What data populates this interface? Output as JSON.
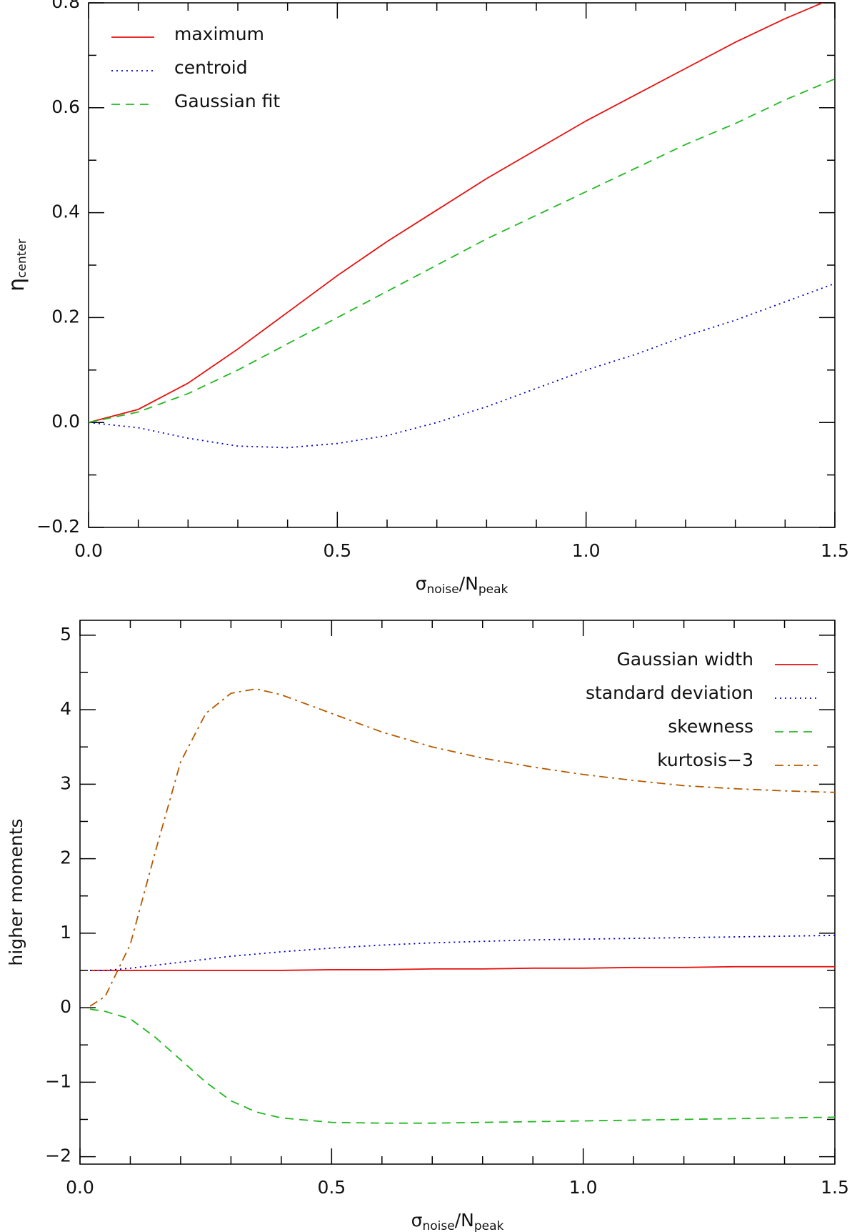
{
  "chart_data": [
    {
      "type": "line",
      "xlabel": [
        "σ",
        "noise",
        "/N",
        "peak"
      ],
      "ylabel": [
        "η",
        "center"
      ],
      "xlim": [
        0,
        1.5
      ],
      "ylim": [
        -0.2,
        0.8
      ],
      "xticks": [
        {
          "value": 0,
          "label": "0.0"
        },
        {
          "value": 0.5,
          "label": "0.5"
        },
        {
          "value": 1,
          "label": "1.0"
        },
        {
          "value": 1.5,
          "label": "1.5"
        }
      ],
      "yticks": [
        {
          "value": -0.2,
          "label": "−0.2"
        },
        {
          "value": 0,
          "label": "0.0"
        },
        {
          "value": 0.2,
          "label": "0.2"
        },
        {
          "value": 0.4,
          "label": "0.4"
        },
        {
          "value": 0.6,
          "label": "0.6"
        },
        {
          "value": 0.8,
          "label": "0.8"
        }
      ],
      "xminorticks": [
        0.1,
        0.2,
        0.3,
        0.4,
        0.6,
        0.7,
        0.8,
        0.9,
        1.1,
        1.2,
        1.3,
        1.4
      ],
      "yminorticks": [
        -0.1,
        0.1,
        0.3,
        0.5,
        0.7
      ],
      "legend": "upper left",
      "x": [
        0,
        0.1,
        0.2,
        0.3,
        0.4,
        0.5,
        0.6,
        0.7,
        0.8,
        0.9,
        1.0,
        1.1,
        1.2,
        1.3,
        1.4,
        1.5
      ],
      "series": [
        {
          "name": "maximum",
          "color": "#e8100e",
          "style": "solid",
          "values": [
            0,
            0.025,
            0.075,
            0.14,
            0.21,
            0.28,
            0.345,
            0.405,
            0.465,
            0.52,
            0.575,
            0.625,
            0.675,
            0.725,
            0.77,
            0.81
          ]
        },
        {
          "name": "centroid",
          "color": "#0000c0",
          "style": "dotted",
          "values": [
            0,
            -0.01,
            -0.03,
            -0.045,
            -0.048,
            -0.04,
            -0.025,
            0,
            0.03,
            0.065,
            0.1,
            0.13,
            0.165,
            0.195,
            0.23,
            0.265
          ]
        },
        {
          "name": "Gaussian fit",
          "color": "#22b822",
          "style": "dashed",
          "values": [
            0,
            0.02,
            0.055,
            0.1,
            0.15,
            0.2,
            0.25,
            0.3,
            0.35,
            0.395,
            0.44,
            0.485,
            0.53,
            0.57,
            0.615,
            0.655
          ]
        }
      ]
    },
    {
      "type": "line",
      "xlabel": [
        "σ",
        "noise",
        "/N",
        "peak"
      ],
      "ylabel": [
        "higher moments"
      ],
      "xlim": [
        0,
        1.5
      ],
      "ylim": [
        -2.1,
        5.2
      ],
      "xticks": [
        {
          "value": 0,
          "label": "0.0"
        },
        {
          "value": 0.5,
          "label": "0.5"
        },
        {
          "value": 1,
          "label": "1.0"
        },
        {
          "value": 1.5,
          "label": "1.5"
        }
      ],
      "yticks": [
        {
          "value": -2,
          "label": "−2"
        },
        {
          "value": -1,
          "label": "−1"
        },
        0,
        1,
        2,
        3,
        4,
        5
      ],
      "xminorticks": [
        0.1,
        0.2,
        0.3,
        0.4,
        0.6,
        0.7,
        0.8,
        0.9,
        1.1,
        1.2,
        1.3,
        1.4
      ],
      "yminorticks": [
        -1.5,
        -0.5,
        0.5,
        1.5,
        2.5,
        3.5,
        4.5
      ],
      "legend": "upper right",
      "x": [
        0.02,
        0.05,
        0.1,
        0.15,
        0.2,
        0.25,
        0.3,
        0.35,
        0.4,
        0.5,
        0.6,
        0.7,
        0.8,
        0.9,
        1.0,
        1.1,
        1.2,
        1.3,
        1.4,
        1.5
      ],
      "series": [
        {
          "name": "Gaussian width",
          "color": "#e8100e",
          "style": "solid",
          "values": [
            0.5,
            0.5,
            0.5,
            0.5,
            0.5,
            0.5,
            0.5,
            0.5,
            0.5,
            0.51,
            0.51,
            0.52,
            0.52,
            0.53,
            0.53,
            0.54,
            0.54,
            0.55,
            0.55,
            0.55
          ]
        },
        {
          "name": "standard deviation",
          "color": "#0000c0",
          "style": "dotted",
          "values": [
            0.5,
            0.5,
            0.53,
            0.57,
            0.61,
            0.65,
            0.69,
            0.72,
            0.75,
            0.8,
            0.84,
            0.87,
            0.89,
            0.91,
            0.92,
            0.93,
            0.94,
            0.95,
            0.96,
            0.97
          ]
        },
        {
          "name": "skewness",
          "color": "#22b822",
          "style": "dashed",
          "values": [
            -0.02,
            -0.05,
            -0.15,
            -0.4,
            -0.7,
            -1.0,
            -1.25,
            -1.4,
            -1.48,
            -1.54,
            -1.55,
            -1.55,
            -1.54,
            -1.53,
            -1.52,
            -1.51,
            -1.5,
            -1.49,
            -1.48,
            -1.47
          ]
        },
        {
          "name": "kurtosis−3",
          "color": "#b35a00",
          "style": "dashdot",
          "values": [
            0.02,
            0.15,
            0.85,
            2.1,
            3.3,
            3.95,
            4.22,
            4.28,
            4.2,
            3.95,
            3.7,
            3.5,
            3.35,
            3.23,
            3.13,
            3.05,
            2.98,
            2.94,
            2.91,
            2.89
          ]
        }
      ]
    }
  ]
}
